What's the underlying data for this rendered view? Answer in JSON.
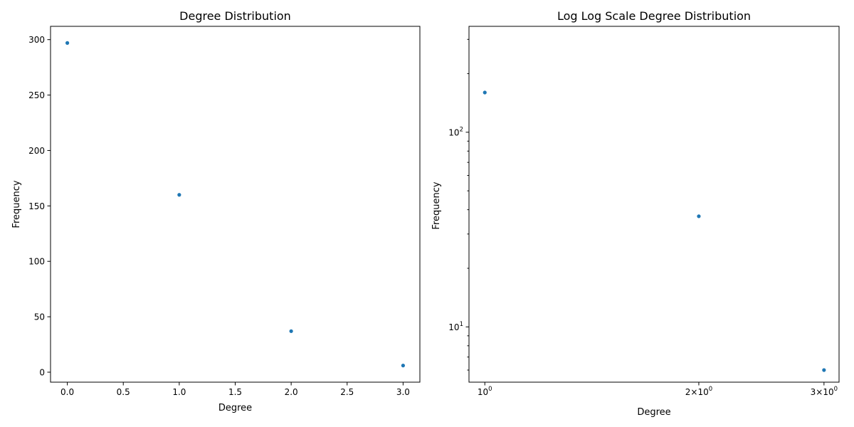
{
  "chart_data": [
    {
      "type": "scatter",
      "title": "Degree Distribution",
      "xlabel": "Degree",
      "ylabel": "Frequency",
      "xscale": "linear",
      "yscale": "linear",
      "xlim": [
        -0.15,
        3.15
      ],
      "ylim": [
        -9,
        312
      ],
      "xticks": [
        0,
        0.5,
        1,
        1.5,
        2,
        2.5,
        3
      ],
      "xtick_labels": [
        "0.0",
        "0.5",
        "1.0",
        "1.5",
        "2.0",
        "2.5",
        "3.0"
      ],
      "yticks": [
        0,
        50,
        100,
        150,
        200,
        250,
        300
      ],
      "ytick_labels": [
        "0",
        "50",
        "100",
        "150",
        "200",
        "250",
        "300"
      ],
      "grid": false,
      "marker_color": "#1f77b4",
      "x": [
        0,
        1,
        2,
        3
      ],
      "y": [
        297,
        160,
        37,
        6
      ]
    },
    {
      "type": "scatter",
      "title": "Log Log Scale Degree Distribution",
      "xlabel": "Degree",
      "ylabel": "Frequency",
      "xscale": "log",
      "yscale": "log",
      "xlim": [
        0.95,
        3.15
      ],
      "ylim": [
        5.2,
        350
      ],
      "xticks": [
        1,
        2,
        3
      ],
      "xtick_labels": [
        {
          "base": "10",
          "exp": "0"
        },
        {
          "coef": "2",
          "base": "10",
          "exp": "0"
        },
        {
          "coef": "3",
          "base": "10",
          "exp": "0"
        }
      ],
      "yticks": [
        10,
        100
      ],
      "ytick_labels": [
        {
          "base": "10",
          "exp": "1"
        },
        {
          "base": "10",
          "exp": "2"
        }
      ],
      "minor_yticks": [
        6,
        7,
        8,
        9,
        20,
        30,
        40,
        50,
        60,
        70,
        80,
        90,
        200,
        300
      ],
      "grid": false,
      "marker_color": "#1f77b4",
      "x": [
        1,
        2,
        3
      ],
      "y": [
        160,
        37,
        6
      ]
    }
  ]
}
